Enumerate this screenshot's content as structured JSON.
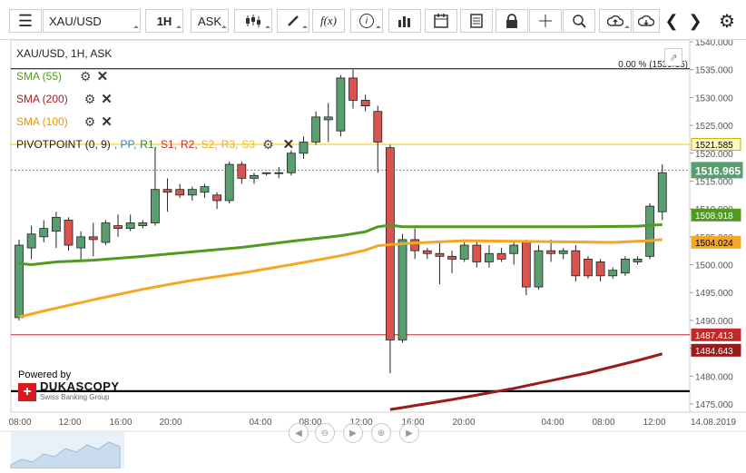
{
  "toolbar": {
    "symbol": "XAU/USD",
    "timeframe": "1H",
    "price_side": "ASK",
    "icons": [
      "menu-icon",
      "candlestick-icon",
      "draw-icon",
      "function-icon",
      "info-icon",
      "bar-chart-icon",
      "calendar-icon",
      "sheet-icon",
      "lock-icon",
      "crosshair-icon",
      "zoom-icon",
      "upload-icon",
      "download-icon",
      "chevron-left-icon",
      "chevron-right-icon",
      "gear-icon"
    ],
    "function_label": "f(x)"
  },
  "chart_header": "XAU/USD, 1H, ASK",
  "indicators": [
    {
      "name": "SMA (55)",
      "color": "#4f9a1f"
    },
    {
      "name": "SMA (200)",
      "color": "#a32222"
    },
    {
      "name": "SMA (100)",
      "color": "#f5a623"
    }
  ],
  "pivot": {
    "label": "PIVOTPOINT (0, 9)",
    "items": [
      {
        "text": ", PP,",
        "color": "#1e88e5"
      },
      {
        "text": "R1,",
        "color": "#2e7d32"
      },
      {
        "text": "S1,",
        "color": "#c62828"
      },
      {
        "text": "R2,",
        "color": "#c62828"
      },
      {
        "text": "S2,",
        "color": "#f5a623"
      },
      {
        "text": "R3,",
        "color": "#f5a623"
      },
      {
        "text": "S3",
        "color": "#f5c400"
      }
    ]
  },
  "percent_label": "0.00 % (1535.15)",
  "powered_by": "Powered by",
  "brand": {
    "name": "DUKASCOPY",
    "tagline": "Swiss Banking Group"
  },
  "colors": {
    "bull": "#5a9e6f",
    "bear": "#d9534f",
    "sma55": "#4f9a1f",
    "sma100": "#f5a623",
    "sma200": "#9b1b1b"
  },
  "chart_data": {
    "type": "candlestick",
    "title": "XAU/USD, 1H, ASK",
    "ylim": [
      1474,
      1541
    ],
    "yticks": [
      1475,
      1480,
      1485,
      1490,
      1495,
      1500,
      1505,
      1510,
      1515,
      1520,
      1525,
      1530,
      1535,
      1540
    ],
    "ytick_labels": [
      "1475.000",
      "1480.000",
      "1485.000",
      "1490.000",
      "1495.000",
      "1500.000",
      "1505.000",
      "1510.000",
      "1515.000",
      "1520.000",
      "1525.000",
      "1530.000",
      "1535.000",
      "1540.000"
    ],
    "xtick_labels": [
      "08:00",
      "12:00",
      "16:00",
      "20:00",
      "04:00",
      "08:00",
      "12:00",
      "16:00",
      "20:00",
      "04:00",
      "08:00",
      "12:00",
      "14.08.2019"
    ],
    "candles": [
      {
        "o": 1490.5,
        "h": 1504.5,
        "l": 1490.0,
        "c": 1503.5
      },
      {
        "o": 1503.0,
        "h": 1507.0,
        "l": 1501.0,
        "c": 1505.5
      },
      {
        "o": 1505.0,
        "h": 1508.0,
        "l": 1504.0,
        "c": 1506.5
      },
      {
        "o": 1506.0,
        "h": 1509.5,
        "l": 1503.0,
        "c": 1508.5
      },
      {
        "o": 1508.0,
        "h": 1508.5,
        "l": 1502.5,
        "c": 1503.5
      },
      {
        "o": 1503.0,
        "h": 1506.0,
        "l": 1500.5,
        "c": 1505.0
      },
      {
        "o": 1505.0,
        "h": 1507.5,
        "l": 1501.5,
        "c": 1504.5
      },
      {
        "o": 1504.0,
        "h": 1508.0,
        "l": 1503.5,
        "c": 1507.5
      },
      {
        "o": 1507.0,
        "h": 1509.0,
        "l": 1505.0,
        "c": 1506.5
      },
      {
        "o": 1506.5,
        "h": 1509.0,
        "l": 1506.0,
        "c": 1507.5
      },
      {
        "o": 1507.0,
        "h": 1508.0,
        "l": 1506.5,
        "c": 1507.5
      },
      {
        "o": 1507.5,
        "h": 1521.0,
        "l": 1507.0,
        "c": 1513.5
      },
      {
        "o": 1513.5,
        "h": 1515.5,
        "l": 1509.5,
        "c": 1513.0
      },
      {
        "o": 1513.5,
        "h": 1514.5,
        "l": 1512.0,
        "c": 1512.5
      },
      {
        "o": 1512.5,
        "h": 1514.0,
        "l": 1511.5,
        "c": 1513.5
      },
      {
        "o": 1513.0,
        "h": 1514.5,
        "l": 1512.0,
        "c": 1514.0
      },
      {
        "o": 1512.5,
        "h": 1513.0,
        "l": 1510.0,
        "c": 1511.5
      },
      {
        "o": 1511.5,
        "h": 1518.5,
        "l": 1511.0,
        "c": 1518.0
      },
      {
        "o": 1518.0,
        "h": 1518.5,
        "l": 1514.5,
        "c": 1515.5
      },
      {
        "o": 1515.5,
        "h": 1516.5,
        "l": 1514.5,
        "c": 1516.0
      },
      {
        "o": 1516.5,
        "h": 1516.5,
        "l": 1516.0,
        "c": 1516.5
      },
      {
        "o": 1516.5,
        "h": 1517.5,
        "l": 1515.5,
        "c": 1516.5
      },
      {
        "o": 1516.5,
        "h": 1520.5,
        "l": 1516.0,
        "c": 1520.0
      },
      {
        "o": 1520.0,
        "h": 1523.0,
        "l": 1519.0,
        "c": 1522.0
      },
      {
        "o": 1522.0,
        "h": 1527.5,
        "l": 1521.5,
        "c": 1526.5
      },
      {
        "o": 1526.0,
        "h": 1529.0,
        "l": 1522.0,
        "c": 1526.5
      },
      {
        "o": 1524.0,
        "h": 1534.0,
        "l": 1523.0,
        "c": 1533.5
      },
      {
        "o": 1533.5,
        "h": 1535.0,
        "l": 1528.0,
        "c": 1529.5
      },
      {
        "o": 1529.5,
        "h": 1530.5,
        "l": 1527.5,
        "c": 1528.5
      },
      {
        "o": 1527.5,
        "h": 1528.5,
        "l": 1516.5,
        "c": 1522.0
      },
      {
        "o": 1521.0,
        "h": 1521.5,
        "l": 1480.5,
        "c": 1486.5
      },
      {
        "o": 1486.5,
        "h": 1505.5,
        "l": 1486.0,
        "c": 1504.5
      },
      {
        "o": 1504.5,
        "h": 1506.5,
        "l": 1501.0,
        "c": 1502.5
      },
      {
        "o": 1502.5,
        "h": 1503.0,
        "l": 1501.0,
        "c": 1502.0
      },
      {
        "o": 1502.0,
        "h": 1504.0,
        "l": 1496.5,
        "c": 1501.5
      },
      {
        "o": 1501.5,
        "h": 1502.5,
        "l": 1498.5,
        "c": 1501.0
      },
      {
        "o": 1501.0,
        "h": 1504.0,
        "l": 1500.5,
        "c": 1503.5
      },
      {
        "o": 1503.5,
        "h": 1504.5,
        "l": 1499.5,
        "c": 1500.5
      },
      {
        "o": 1500.5,
        "h": 1503.5,
        "l": 1499.5,
        "c": 1502.0
      },
      {
        "o": 1502.0,
        "h": 1503.0,
        "l": 1500.5,
        "c": 1501.0
      },
      {
        "o": 1502.0,
        "h": 1504.0,
        "l": 1500.0,
        "c": 1503.5
      },
      {
        "o": 1504.0,
        "h": 1504.5,
        "l": 1494.5,
        "c": 1496.0
      },
      {
        "o": 1496.0,
        "h": 1503.5,
        "l": 1495.5,
        "c": 1502.5
      },
      {
        "o": 1502.5,
        "h": 1504.5,
        "l": 1500.5,
        "c": 1502.0
      },
      {
        "o": 1502.0,
        "h": 1503.0,
        "l": 1501.0,
        "c": 1502.5
      },
      {
        "o": 1502.5,
        "h": 1503.5,
        "l": 1497.0,
        "c": 1498.0
      },
      {
        "o": 1501.0,
        "h": 1501.5,
        "l": 1497.5,
        "c": 1498.0
      },
      {
        "o": 1500.5,
        "h": 1501.0,
        "l": 1497.0,
        "c": 1498.0
      },
      {
        "o": 1498.0,
        "h": 1499.5,
        "l": 1497.5,
        "c": 1499.0
      },
      {
        "o": 1498.5,
        "h": 1501.5,
        "l": 1498.0,
        "c": 1501.0
      },
      {
        "o": 1500.5,
        "h": 1501.5,
        "l": 1500.0,
        "c": 1501.0
      },
      {
        "o": 1501.5,
        "h": 1511.0,
        "l": 1501.0,
        "c": 1510.5
      },
      {
        "o": 1509.5,
        "h": 1518.0,
        "l": 1508.0,
        "c": 1516.5
      }
    ],
    "sma55": [
      [
        0,
        1500.2
      ],
      [
        1,
        1500.0
      ],
      [
        3,
        1500.5
      ],
      [
        6,
        1500.8
      ],
      [
        10,
        1501.5
      ],
      [
        14,
        1502.3
      ],
      [
        18,
        1503.1
      ],
      [
        22,
        1504.2
      ],
      [
        26,
        1505.2
      ],
      [
        28,
        1505.9
      ],
      [
        29,
        1506.8
      ],
      [
        30,
        1507.1
      ],
      [
        31,
        1506.8
      ],
      [
        34,
        1506.8
      ],
      [
        40,
        1506.8
      ],
      [
        46,
        1506.8
      ],
      [
        50,
        1506.9
      ],
      [
        52,
        1507.2
      ]
    ],
    "sma100": [
      [
        0,
        1490.6
      ],
      [
        2,
        1491.7
      ],
      [
        6,
        1493.7
      ],
      [
        10,
        1495.6
      ],
      [
        14,
        1497.2
      ],
      [
        18,
        1498.5
      ],
      [
        22,
        1500.0
      ],
      [
        26,
        1501.6
      ],
      [
        28,
        1502.6
      ],
      [
        29,
        1503.4
      ],
      [
        30,
        1503.6
      ],
      [
        32,
        1503.9
      ],
      [
        36,
        1504.3
      ],
      [
        44,
        1504.1
      ],
      [
        48,
        1504.0
      ],
      [
        51,
        1504.3
      ],
      [
        52,
        1504.5
      ]
    ],
    "sma200": [
      [
        30,
        1474.0
      ],
      [
        35,
        1475.8
      ],
      [
        40,
        1477.8
      ],
      [
        46,
        1480.6
      ],
      [
        50,
        1482.8
      ],
      [
        52,
        1484.0
      ]
    ],
    "hlines": [
      {
        "name": "R1",
        "value": 1535.15,
        "color": "#000000"
      },
      {
        "name": "PP",
        "value": 1521.585,
        "color": "#f5c400"
      },
      {
        "name": "S1",
        "value": 1487.413,
        "color": "#c62828"
      },
      {
        "name": "S2",
        "value": 1477.3,
        "color": "#000000"
      }
    ],
    "price_tags": [
      {
        "text": "1521.585",
        "value": 1521.585,
        "bg": "#fff9c4",
        "fg": "#000000"
      },
      {
        "text": "1516.965",
        "value": 1516.965,
        "bg": "#5a9e6f",
        "fg": "#ffffff"
      },
      {
        "text": "1508.918",
        "value": 1508.918,
        "bg": "#4f9a1f",
        "fg": "#ffffff"
      },
      {
        "text": "1504.024",
        "value": 1504.024,
        "bg": "#f5a623",
        "fg": "#000000"
      },
      {
        "text": "1487.413",
        "value": 1487.413,
        "bg": "#c62828",
        "fg": "#ffffff"
      },
      {
        "text": "1484.643",
        "value": 1484.643,
        "bg": "#9b1b1b",
        "fg": "#ffffff"
      }
    ],
    "current_price": 1516.965
  }
}
